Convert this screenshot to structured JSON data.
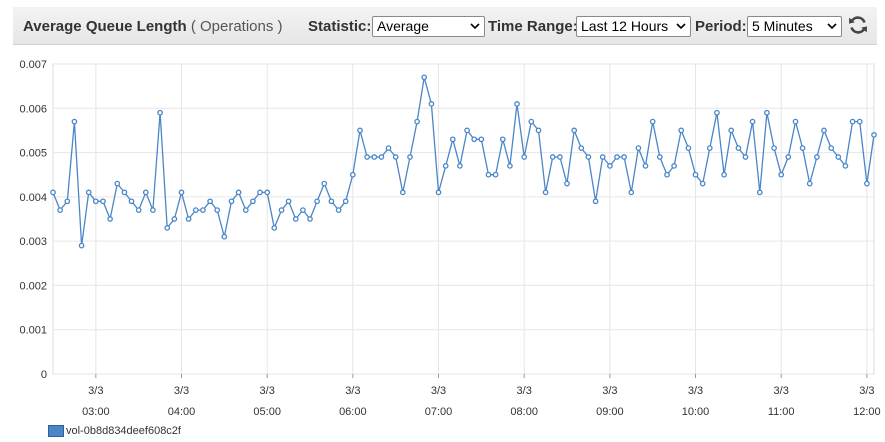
{
  "header": {
    "title": "Average Queue Length",
    "unit": "( Operations )",
    "statistic_label": "Statistic:",
    "statistic_value": "Average",
    "time_range_label": "Time Range:",
    "time_range_value": "Last 12 Hours",
    "period_label": "Period:",
    "period_value": "5 Minutes",
    "refresh_icon": "refresh-icon"
  },
  "colors": {
    "series": "#4a86c8",
    "grid": "#e6e6e6"
  },
  "chart_data": {
    "type": "line",
    "title": "Average Queue Length",
    "ylabel": "",
    "xlabel": "",
    "ylim": [
      0,
      0.007
    ],
    "y_ticks": [
      "0",
      "0.001",
      "0.002",
      "0.003",
      "0.004",
      "0.005",
      "0.006",
      "0.007"
    ],
    "x_ticks": [
      {
        "date": "3/3",
        "time": "03:00"
      },
      {
        "date": "3/3",
        "time": "04:00"
      },
      {
        "date": "3/3",
        "time": "05:00"
      },
      {
        "date": "3/3",
        "time": "06:00"
      },
      {
        "date": "3/3",
        "time": "07:00"
      },
      {
        "date": "3/3",
        "time": "08:00"
      },
      {
        "date": "3/3",
        "time": "09:00"
      },
      {
        "date": "3/3",
        "time": "10:00"
      },
      {
        "date": "3/3",
        "time": "11:00"
      },
      {
        "date": "3/3",
        "time": "12:00"
      }
    ],
    "grid": true,
    "legend_position": "bottom-left",
    "series": [
      {
        "name": "vol-0b8d834deef608c2f",
        "x_start": "02:30",
        "interval_minutes": 5,
        "values": [
          0.0041,
          0.0037,
          0.0039,
          0.0057,
          0.0029,
          0.0041,
          0.0039,
          0.0039,
          0.0035,
          0.0043,
          0.0041,
          0.0039,
          0.0037,
          0.0041,
          0.0037,
          0.0059,
          0.0033,
          0.0035,
          0.0041,
          0.0035,
          0.0037,
          0.0037,
          0.0039,
          0.0037,
          0.0031,
          0.0039,
          0.0041,
          0.0037,
          0.0039,
          0.0041,
          0.0041,
          0.0033,
          0.0037,
          0.0039,
          0.0035,
          0.0037,
          0.0035,
          0.0039,
          0.0043,
          0.0039,
          0.0037,
          0.0039,
          0.0045,
          0.0055,
          0.0049,
          0.0049,
          0.0049,
          0.0051,
          0.0049,
          0.0041,
          0.0049,
          0.0057,
          0.0067,
          0.0061,
          0.0041,
          0.0047,
          0.0053,
          0.0047,
          0.0055,
          0.0053,
          0.0053,
          0.0045,
          0.0045,
          0.0053,
          0.0047,
          0.0061,
          0.0049,
          0.0057,
          0.0055,
          0.0041,
          0.0049,
          0.0049,
          0.0043,
          0.0055,
          0.0051,
          0.0049,
          0.0039,
          0.0049,
          0.0047,
          0.0049,
          0.0049,
          0.0041,
          0.0051,
          0.0047,
          0.0057,
          0.0049,
          0.0045,
          0.0047,
          0.0055,
          0.0051,
          0.0045,
          0.0043,
          0.0051,
          0.0059,
          0.0045,
          0.0055,
          0.0051,
          0.0049,
          0.0057,
          0.0041,
          0.0059,
          0.0051,
          0.0045,
          0.0049,
          0.0057,
          0.0051,
          0.0043,
          0.0049,
          0.0055,
          0.0051,
          0.0049,
          0.0047,
          0.0057,
          0.0057,
          0.0043,
          0.0054
        ]
      }
    ]
  }
}
